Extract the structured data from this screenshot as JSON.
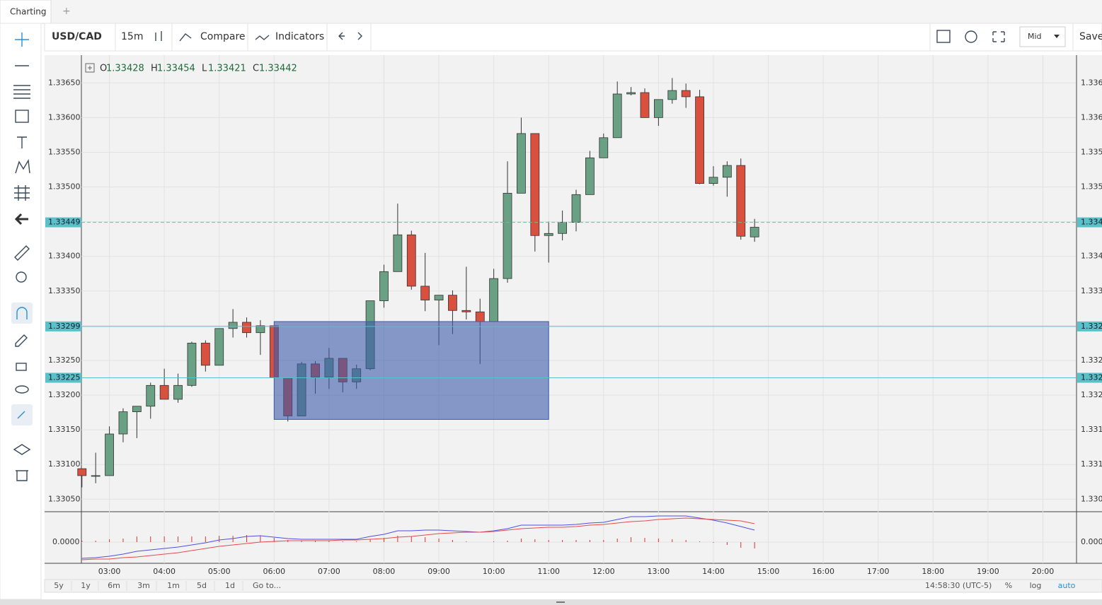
{
  "tabs": {
    "title": "Charting",
    "add": "+"
  },
  "toolbar": {
    "symbol": "USD/CAD",
    "interval": "15m",
    "compare": "Compare",
    "indicators": "Indicators",
    "price_type": "Mid",
    "save": "Save"
  },
  "chart_data": {
    "type": "candlestick",
    "up_color": "#6aa084",
    "down_color": "#d9503f",
    "ohlc_legend": [
      {
        "label": "O",
        "value": 1.33428
      },
      {
        "label": "H",
        "value": 1.33454
      },
      {
        "label": "L",
        "value": 1.33421
      },
      {
        "label": "C",
        "value": 1.33442
      }
    ],
    "x": [
      2.5,
      2.75,
      3,
      3.25,
      3.5,
      3.75,
      4,
      4.25,
      4.5,
      4.75,
      5,
      5.25,
      5.5,
      5.75,
      6,
      6.25,
      6.5,
      6.75,
      7,
      7.25,
      7.5,
      7.75,
      8,
      8.25,
      8.5,
      8.75,
      9,
      9.25,
      9.5,
      9.75,
      10,
      10.25,
      10.5,
      10.75,
      11,
      11.25,
      11.5,
      11.75,
      12,
      12.25,
      12.5,
      12.75,
      13,
      13.25,
      13.5,
      13.75,
      14,
      14.25,
      14.5,
      14.75
    ],
    "open": [
      1.33094,
      1.33084,
      1.33084,
      1.33144,
      1.33176,
      1.33184,
      1.33214,
      1.33194,
      1.33214,
      1.33275,
      1.33243,
      1.33296,
      1.33305,
      1.3329,
      1.333,
      1.33225,
      1.3317,
      1.33245,
      1.33226,
      1.33253,
      1.33219,
      1.33238,
      1.33336,
      1.33378,
      1.33431,
      1.33357,
      1.33337,
      1.33344,
      1.33322,
      1.3332,
      1.33306,
      1.33368,
      1.33491,
      1.33577,
      1.3343,
      1.33433,
      1.33449,
      1.33489,
      1.33542,
      1.33571,
      1.33634,
      1.33636,
      1.336,
      1.33626,
      1.33639,
      1.3363,
      1.33505,
      1.33514,
      1.33531,
      1.33428
    ],
    "high": [
      1.33094,
      1.33117,
      1.33155,
      1.33181,
      1.33184,
      1.33218,
      1.33238,
      1.33231,
      1.33277,
      1.33279,
      1.33296,
      1.33324,
      1.33312,
      1.33308,
      1.333,
      1.33225,
      1.33248,
      1.33249,
      1.33268,
      1.33253,
      1.33244,
      1.33336,
      1.33388,
      1.33476,
      1.33437,
      1.33405,
      1.33344,
      1.33351,
      1.33385,
      1.33339,
      1.33382,
      1.33537,
      1.336,
      1.33577,
      1.3345,
      1.33466,
      1.33496,
      1.33552,
      1.33577,
      1.33652,
      1.33644,
      1.33642,
      1.33626,
      1.33657,
      1.33649,
      1.3364,
      1.3353,
      1.33537,
      1.33541,
      1.33454
    ],
    "low": [
      1.33067,
      1.33073,
      1.33084,
      1.33132,
      1.33138,
      1.33166,
      1.33194,
      1.33189,
      1.33212,
      1.33234,
      1.33243,
      1.33283,
      1.33283,
      1.33258,
      1.33225,
      1.33162,
      1.3317,
      1.33202,
      1.33209,
      1.33204,
      1.33209,
      1.33236,
      1.33326,
      1.33378,
      1.33352,
      1.33321,
      1.33272,
      1.33288,
      1.33309,
      1.33245,
      1.33306,
      1.33362,
      1.33491,
      1.33407,
      1.33391,
      1.33423,
      1.33436,
      1.33489,
      1.33542,
      1.33571,
      1.33632,
      1.336,
      1.33588,
      1.3362,
      1.33614,
      1.33504,
      1.33502,
      1.33486,
      1.33424,
      1.33421
    ],
    "close": [
      1.33084,
      1.33084,
      1.33144,
      1.33176,
      1.33184,
      1.33214,
      1.33194,
      1.33214,
      1.33275,
      1.33243,
      1.33296,
      1.33305,
      1.3329,
      1.333,
      1.33225,
      1.3317,
      1.33245,
      1.33226,
      1.33253,
      1.33219,
      1.33238,
      1.33336,
      1.33378,
      1.33431,
      1.33357,
      1.33337,
      1.33344,
      1.33322,
      1.3332,
      1.33306,
      1.33368,
      1.33491,
      1.33577,
      1.3343,
      1.33433,
      1.33449,
      1.33489,
      1.33542,
      1.33571,
      1.33634,
      1.33636,
      1.336,
      1.33626,
      1.33639,
      1.3363,
      1.33505,
      1.33514,
      1.33531,
      1.33429,
      1.33442
    ],
    "xlim": [
      2.49,
      20.6
    ],
    "xticks": [
      {
        "value": 3,
        "label": "03:00"
      },
      {
        "value": 4,
        "label": "04:00"
      },
      {
        "value": 5,
        "label": "05:00"
      },
      {
        "value": 6,
        "label": "06:00"
      },
      {
        "value": 7,
        "label": "07:00"
      },
      {
        "value": 8,
        "label": "08:00"
      },
      {
        "value": 9,
        "label": "09:00"
      },
      {
        "value": 10,
        "label": "10:00"
      },
      {
        "value": 11,
        "label": "11:00"
      },
      {
        "value": 12,
        "label": "12:00"
      },
      {
        "value": 13,
        "label": "13:00"
      },
      {
        "value": 14,
        "label": "14:00"
      },
      {
        "value": 15,
        "label": "15:00"
      },
      {
        "value": 16,
        "label": "16:00"
      },
      {
        "value": 17,
        "label": "17:00"
      },
      {
        "value": 18,
        "label": "18:00"
      },
      {
        "value": 19,
        "label": "19:00"
      },
      {
        "value": 20,
        "label": "20:00"
      }
    ],
    "ylim": [
      1.33033,
      1.3369
    ],
    "yticks": [
      {
        "value": 1.3305,
        "label": "1.33050"
      },
      {
        "value": 1.331,
        "label": "1.33100"
      },
      {
        "value": 1.3315,
        "label": "1.33150"
      },
      {
        "value": 1.332,
        "label": "1.33200"
      },
      {
        "value": 1.3325,
        "label": "1.33250"
      },
      {
        "value": 1.333,
        "label": "1.33300"
      },
      {
        "value": 1.3335,
        "label": "1.33350"
      },
      {
        "value": 1.334,
        "label": "1.33400"
      },
      {
        "value": 1.3345,
        "label": "1.33450"
      },
      {
        "value": 1.335,
        "label": "1.33500"
      },
      {
        "value": 1.3355,
        "label": "1.33550"
      },
      {
        "value": 1.336,
        "label": "1.33600"
      },
      {
        "value": 1.3365,
        "label": "1.33650"
      }
    ],
    "grid": true,
    "price_lines": [
      {
        "value": 1.33449,
        "color": "#7fb3a6",
        "dash": true
      },
      {
        "value": 1.33299,
        "color": "#5bc0c8",
        "dash": false
      },
      {
        "value": 1.33225,
        "color": "#5bc0c8",
        "dash": false
      }
    ],
    "rectangle": {
      "x": [
        6,
        11
      ],
      "y": [
        1.33306,
        1.33165
      ],
      "color": "#3b5aa8"
    },
    "indicator": {
      "ylim": [
        -0.0003,
        0.00042
      ],
      "yticks": [
        {
          "value": 0,
          "label": "0.0000"
        }
      ],
      "series": [
        {
          "color": "#4f4fe0",
          "values": [
            -0.00023,
            -0.00022,
            -0.0002,
            -0.00017,
            -0.00013,
            -0.00011,
            -9e-05,
            -7e-05,
            -4e-05,
            -1e-05,
            3e-05,
            5e-05,
            8e-05,
            9e-05,
            7e-05,
            5e-05,
            4e-05,
            4e-05,
            4e-05,
            4e-05,
            4e-05,
            8e-05,
            0.00011,
            0.00016,
            0.00016,
            0.00017,
            0.00017,
            0.00016,
            0.00015,
            0.00014,
            0.00016,
            0.00019,
            0.00024,
            0.00024,
            0.00024,
            0.00024,
            0.00025,
            0.00027,
            0.00028,
            0.00032,
            0.00036,
            0.00036,
            0.00037,
            0.00037,
            0.00037,
            0.00034,
            0.00031,
            0.00027,
            0.00022,
            0.00017
          ]
        },
        {
          "color": "#e84a4a",
          "values": [
            -0.00025,
            -0.00024,
            -0.00024,
            -0.00022,
            -0.00021,
            -0.00019,
            -0.00017,
            -0.00015,
            -0.00012,
            -9e-05,
            -6e-05,
            -4e-05,
            -2e-05,
            0,
            1e-05,
            2e-05,
            2e-05,
            2e-05,
            2e-05,
            3e-05,
            3e-05,
            4e-05,
            5e-05,
            7e-05,
            8e-05,
            0.0001,
            0.00012,
            0.00013,
            0.00014,
            0.00014,
            0.00015,
            0.00017,
            0.00019,
            0.0002,
            0.00021,
            0.00021,
            0.00022,
            0.00024,
            0.00025,
            0.00027,
            0.00029,
            0.0003,
            0.00032,
            0.00033,
            0.00034,
            0.00033,
            0.00032,
            0.00031,
            0.0003,
            0.00026
          ]
        }
      ],
      "histogram": {
        "color": "#e03030",
        "values": [
          2e-05,
          2e-05,
          4e-05,
          5e-05,
          8e-05,
          8e-05,
          8e-05,
          8e-05,
          8e-05,
          8e-05,
          9e-05,
          9e-05,
          0.0001,
          9e-05,
          6e-05,
          3e-05,
          2e-05,
          2e-05,
          2e-05,
          1e-05,
          1e-05,
          4e-05,
          6e-05,
          9e-05,
          8e-05,
          7e-05,
          5e-05,
          3e-05,
          1e-05,
          0,
          1e-05,
          2e-05,
          5e-05,
          4e-05,
          3e-05,
          3e-05,
          3e-05,
          3e-05,
          3e-05,
          5e-05,
          7e-05,
          6e-05,
          5e-05,
          4e-05,
          3e-05,
          1e-05,
          -1e-05,
          -4e-05,
          -8e-05,
          -9e-05
        ]
      }
    }
  },
  "footer": {
    "ranges": [
      "5y",
      "1y",
      "6m",
      "3m",
      "1m",
      "5d",
      "1d"
    ],
    "goto": "Go to...",
    "clock": "14:58:30 (UTC-5)",
    "percent": "%",
    "log": "log",
    "auto": "auto"
  }
}
